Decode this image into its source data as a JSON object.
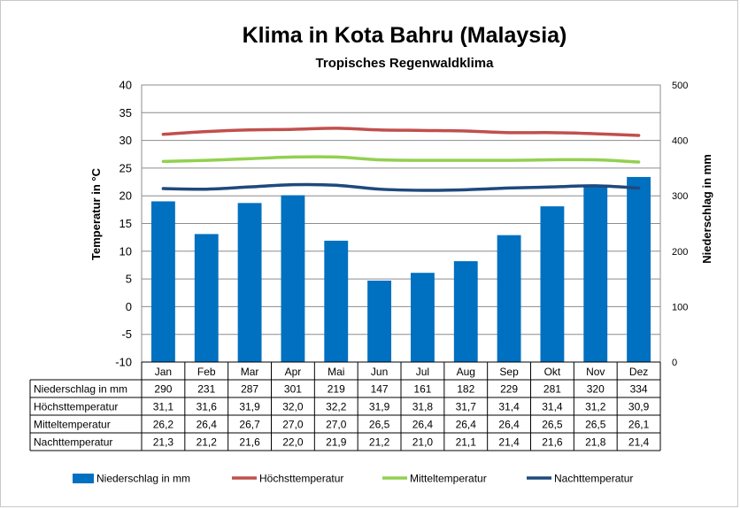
{
  "chart_data": {
    "type": "bar",
    "title": "Klima in Kota Bahru (Malaysia)",
    "subtitle": "Tropisches Regenwaldklima",
    "ylabel_left": "Temperatur in °C",
    "ylabel_right": "Niederschlag in mm",
    "ylim_left": [
      -10,
      40
    ],
    "ylim_right": [
      0,
      500
    ],
    "yticks_left": [
      "40",
      "35",
      "30",
      "25",
      "20",
      "15",
      "10",
      "5",
      "0",
      "-5",
      "-10"
    ],
    "yticks_right": [
      "500",
      "400",
      "300",
      "200",
      "100",
      "0"
    ],
    "grid": true,
    "legend_position": "bottom",
    "categories": [
      "Jan",
      "Feb",
      "Mar",
      "Apr",
      "Mai",
      "Jun",
      "Jul",
      "Aug",
      "Sep",
      "Okt",
      "Nov",
      "Dez"
    ],
    "series": [
      {
        "name": "Niederschlag in mm",
        "kind": "bar",
        "axis": "right",
        "color": "#0070c0",
        "values": [
          290,
          231,
          287,
          301,
          219,
          147,
          161,
          182,
          229,
          281,
          320,
          334
        ],
        "labels": [
          "290",
          "231",
          "287",
          "301",
          "219",
          "147",
          "161",
          "182",
          "229",
          "281",
          "320",
          "334"
        ]
      },
      {
        "name": "Höchsttemperatur",
        "kind": "line",
        "axis": "left",
        "color": "#c0504d",
        "values": [
          31.1,
          31.6,
          31.9,
          32.0,
          32.2,
          31.9,
          31.8,
          31.7,
          31.4,
          31.4,
          31.2,
          30.9
        ],
        "labels": [
          "31,1",
          "31,6",
          "31,9",
          "32,0",
          "32,2",
          "31,9",
          "31,8",
          "31,7",
          "31,4",
          "31,4",
          "31,2",
          "30,9"
        ]
      },
      {
        "name": "Mitteltemperatur",
        "kind": "line",
        "axis": "left",
        "color": "#92d050",
        "values": [
          26.2,
          26.4,
          26.7,
          27.0,
          27.0,
          26.5,
          26.4,
          26.4,
          26.4,
          26.5,
          26.5,
          26.1
        ],
        "labels": [
          "26,2",
          "26,4",
          "26,7",
          "27,0",
          "27,0",
          "26,5",
          "26,4",
          "26,4",
          "26,4",
          "26,5",
          "26,5",
          "26,1"
        ]
      },
      {
        "name": "Nachttemperatur",
        "kind": "line",
        "axis": "left",
        "color": "#1f497d",
        "values": [
          21.3,
          21.2,
          21.6,
          22.0,
          21.9,
          21.2,
          21.0,
          21.1,
          21.4,
          21.6,
          21.8,
          21.4
        ],
        "labels": [
          "21,3",
          "21,2",
          "21,6",
          "22,0",
          "21,9",
          "21,2",
          "21,0",
          "21,1",
          "21,4",
          "21,6",
          "21,8",
          "21,4"
        ]
      }
    ]
  }
}
